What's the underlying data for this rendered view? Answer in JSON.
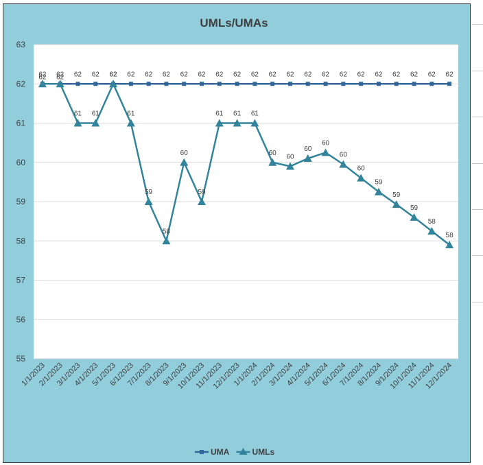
{
  "chart_data": {
    "type": "line",
    "title": "UMLs/UMAs",
    "xlabel": "",
    "ylabel": "",
    "ylim": [
      55,
      63
    ],
    "yticks": [
      55,
      56,
      57,
      58,
      59,
      60,
      61,
      62,
      63
    ],
    "categories": [
      "1/1/2023",
      "2/1/2023",
      "3/1/2023",
      "4/1/2023",
      "5/1/2023",
      "6/1/2023",
      "7/1/2023",
      "8/1/2023",
      "9/1/2023",
      "10/1/2023",
      "11/1/2023",
      "12/1/2023",
      "1/1/2024",
      "2/1/2024",
      "3/1/2024",
      "4/1/2024",
      "5/1/2024",
      "6/1/2024",
      "7/1/2024",
      "8/1/2024",
      "9/1/2024",
      "10/1/2024",
      "11/1/2024",
      "12/1/2024"
    ],
    "series": [
      {
        "name": "UMA",
        "color": "#336699",
        "marker": "square",
        "values": [
          62,
          62,
          62,
          62,
          62,
          62,
          62,
          62,
          62,
          62,
          62,
          62,
          62,
          62,
          62,
          62,
          62,
          62,
          62,
          62,
          62,
          62,
          62,
          62
        ],
        "labels": [
          "62",
          "62",
          "62",
          "62",
          "62",
          "62",
          "62",
          "62",
          "62",
          "62",
          "62",
          "62",
          "62",
          "62",
          "62",
          "62",
          "62",
          "62",
          "62",
          "62",
          "62",
          "62",
          "62",
          "62"
        ]
      },
      {
        "name": "UMLs",
        "color": "#31849b",
        "marker": "triangle",
        "values": [
          62,
          62,
          61,
          61,
          62,
          61,
          59,
          58,
          60,
          59,
          61,
          61,
          61,
          60,
          59.9,
          60.1,
          60.25,
          59.95,
          59.6,
          59.25,
          58.93,
          58.6,
          58.25,
          57.9
        ],
        "labels": [
          "62",
          "62",
          "61",
          "61",
          "62",
          "61",
          "59",
          "58",
          "60",
          "59",
          "61",
          "61",
          "61",
          "60",
          "60",
          "60",
          "60",
          "60",
          "60",
          "59",
          "59",
          "59",
          "58",
          "58"
        ]
      }
    ],
    "grid": true,
    "legend_position": "bottom",
    "background_color": "#92cddc",
    "plot_background": "#ffffff"
  }
}
